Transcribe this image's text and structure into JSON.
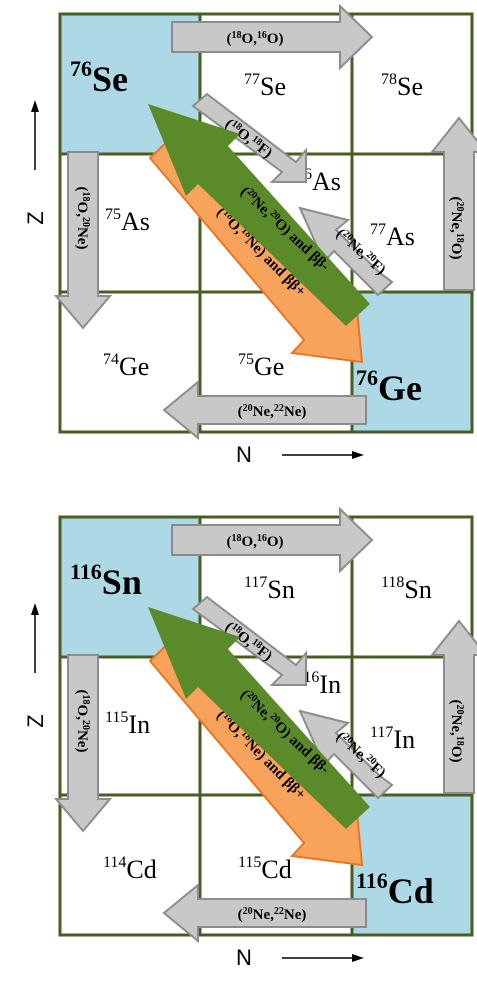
{
  "colors": {
    "highlight_cell": "#add8e6",
    "grid_line": "#4a5e23",
    "gray_arrow_fill": "#c8c8c8",
    "gray_arrow_stroke": "#8c8c8c",
    "green_arrow": "#5a8a2a",
    "orange_arrow_fill": "#f7a35c",
    "orange_arrow_stroke": "#e87722"
  },
  "panels": [
    {
      "axis_n": "N",
      "axis_z": "Z",
      "cells": {
        "r0c0": {
          "mass": "76",
          "sym": "Se"
        },
        "r0c1": {
          "mass": "77",
          "sym": "Se"
        },
        "r0c2": {
          "mass": "78",
          "sym": "Se"
        },
        "r1c0": {
          "mass": "75",
          "sym": "As"
        },
        "r1c1": {
          "mass": "76",
          "sym": "As"
        },
        "r1c2": {
          "mass": "77",
          "sym": "As"
        },
        "r2c0": {
          "mass": "74",
          "sym": "Ge"
        },
        "r2c1": {
          "mass": "75",
          "sym": "Ge"
        },
        "r2c2": {
          "mass": "76",
          "sym": "Ge"
        }
      },
      "arrows": {
        "top": {
          "a": "18",
          "b": "O",
          "c": "16",
          "d": "O"
        },
        "left": {
          "a": "18",
          "b": "O",
          "c": "20",
          "d": "Ne"
        },
        "right": {
          "a": "20",
          "b": "Ne",
          "c": "18",
          "d": "O"
        },
        "bottom": {
          "a": "20",
          "b": "Ne",
          "c": "22",
          "d": "Ne"
        },
        "diag_upper": {
          "a": "18",
          "b": "O",
          "c": "18",
          "d": "F"
        },
        "diag_lower": {
          "a": "20",
          "b": "Ne",
          "c": "20",
          "d": "F"
        },
        "green": {
          "a": "20",
          "b": "Ne",
          "c": "20",
          "d": "O",
          "suffix": " and ββ-"
        },
        "orange": {
          "a": "18",
          "b": "O",
          "c": "18",
          "d": "Ne",
          "suffix": " and ββ+"
        }
      }
    },
    {
      "axis_n": "N",
      "axis_z": "Z",
      "cells": {
        "r0c0": {
          "mass": "116",
          "sym": "Sn"
        },
        "r0c1": {
          "mass": "117",
          "sym": "Sn"
        },
        "r0c2": {
          "mass": "118",
          "sym": "Sn"
        },
        "r1c0": {
          "mass": "115",
          "sym": "In"
        },
        "r1c1": {
          "mass": "116",
          "sym": "In"
        },
        "r1c2": {
          "mass": "117",
          "sym": "In"
        },
        "r2c0": {
          "mass": "114",
          "sym": "Cd"
        },
        "r2c1": {
          "mass": "115",
          "sym": "Cd"
        },
        "r2c2": {
          "mass": "116",
          "sym": "Cd"
        }
      },
      "arrows": {
        "top": {
          "a": "18",
          "b": "O",
          "c": "16",
          "d": "O"
        },
        "left": {
          "a": "18",
          "b": "O",
          "c": "20",
          "d": "Ne"
        },
        "right": {
          "a": "20",
          "b": "Ne",
          "c": "18",
          "d": "O"
        },
        "bottom": {
          "a": "20",
          "b": "Ne",
          "c": "22",
          "d": "Ne"
        },
        "diag_upper": {
          "a": "18",
          "b": "O",
          "c": "18",
          "d": "F"
        },
        "diag_lower": {
          "a": "20",
          "b": "Ne",
          "c": "20",
          "d": "F"
        },
        "green": {
          "a": "20",
          "b": "Ne",
          "c": "20",
          "d": "O",
          "suffix": " and ββ-"
        },
        "orange": {
          "a": "18",
          "b": "O",
          "c": "18",
          "d": "Ne",
          "suffix": " and ββ+"
        }
      }
    }
  ]
}
